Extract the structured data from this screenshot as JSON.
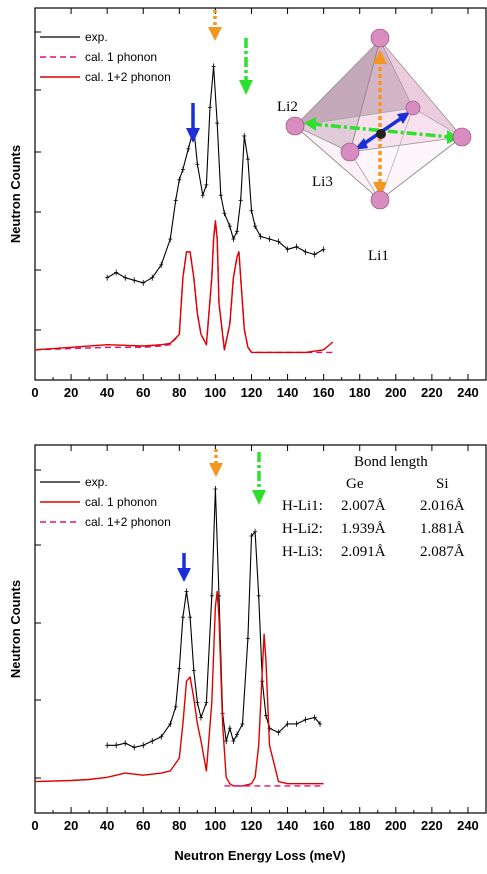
{
  "chart_data": [
    {
      "type": "line",
      "panel": "top",
      "ylabel": "Neutron Counts",
      "xlabel": "",
      "xlim": [
        0,
        250
      ],
      "x_ticks": [
        "0",
        "20",
        "40",
        "60",
        "80",
        "100",
        "120",
        "140",
        "160",
        "180",
        "200",
        "220",
        "240"
      ],
      "y_ticks_labeled": false,
      "legend": [
        "exp.",
        "cal. 1 phonon",
        "cal. 1+2 phonon"
      ],
      "legend_position": "top-left",
      "series": [
        {
          "name": "exp.",
          "color": "#000000",
          "style": "solid-with-errorbars",
          "x": [
            40,
            45,
            50,
            55,
            60,
            65,
            70,
            75,
            78,
            80,
            82,
            85,
            88,
            90,
            93,
            95,
            97,
            99,
            101,
            103,
            105,
            108,
            110,
            112,
            114,
            116,
            118,
            120,
            122,
            125,
            130,
            135,
            140,
            145,
            150,
            155,
            160
          ],
          "y": [
            30,
            32,
            30,
            29,
            28,
            30,
            35,
            45,
            60,
            68,
            72,
            80,
            88,
            74,
            62,
            66,
            96,
            112,
            90,
            62,
            55,
            50,
            45,
            48,
            60,
            85,
            76,
            56,
            50,
            46,
            45,
            44,
            41,
            42,
            40,
            39,
            41
          ]
        },
        {
          "name": "cal. 1 phonon",
          "color": "#e0107a",
          "style": "dashed",
          "x": [
            0,
            20,
            40,
            60,
            70,
            75,
            80,
            82,
            84,
            86,
            88,
            90,
            92,
            95,
            98,
            99,
            100,
            101,
            102,
            105,
            108,
            110,
            112,
            113,
            114,
            116,
            118,
            120,
            125,
            130,
            140,
            150,
            160,
            165
          ],
          "y": [
            2,
            2.5,
            3,
            3,
            3.5,
            4,
            8,
            30,
            40,
            40,
            30,
            16,
            8,
            4,
            30,
            45,
            52,
            45,
            20,
            2,
            12,
            30,
            38,
            40,
            30,
            10,
            3,
            1,
            1,
            1,
            1,
            1,
            1,
            1
          ]
        },
        {
          "name": "cal. 1+2 phonon",
          "color": "#e00000",
          "style": "solid",
          "x": [
            0,
            20,
            40,
            60,
            70,
            75,
            80,
            82,
            84,
            86,
            88,
            90,
            92,
            95,
            98,
            99,
            100,
            101,
            102,
            105,
            108,
            110,
            112,
            113,
            114,
            116,
            118,
            120,
            125,
            130,
            140,
            150,
            160,
            165
          ],
          "y": [
            2,
            3,
            4,
            3.5,
            4,
            4.5,
            8,
            30,
            40,
            40,
            30,
            16,
            8,
            4,
            30,
            45,
            52,
            45,
            20,
            2,
            12,
            30,
            38,
            40,
            30,
            10,
            3,
            1,
            1,
            1,
            1,
            1,
            2,
            5
          ]
        }
      ],
      "annotations": {
        "arrows": [
          "blue down arrow at ~87",
          "orange dotted arrow at ~99",
          "green dash-dot arrow at ~117"
        ],
        "octahedron_labels": [
          "Li2",
          "Li3",
          "Li1"
        ]
      }
    },
    {
      "type": "line",
      "panel": "bottom",
      "ylabel": "Neutron Counts",
      "xlabel": "Neutron Energy Loss (meV)",
      "xlim": [
        0,
        250
      ],
      "x_ticks": [
        "0",
        "20",
        "40",
        "60",
        "80",
        "100",
        "120",
        "140",
        "160",
        "180",
        "200",
        "220",
        "240"
      ],
      "y_ticks_labeled": false,
      "legend": [
        "exp.",
        "cal. 1 phonon",
        "cal. 1+2 phonon"
      ],
      "legend_position": "top-left",
      "series": [
        {
          "name": "exp.",
          "color": "#000000",
          "style": "solid-with-errorbars",
          "x": [
            40,
            45,
            50,
            55,
            60,
            65,
            70,
            75,
            78,
            80,
            82,
            84,
            86,
            88,
            90,
            92,
            95,
            98,
            100,
            102,
            104,
            106,
            108,
            110,
            112,
            115,
            118,
            120,
            122,
            124,
            126,
            128,
            130,
            135,
            140,
            145,
            150,
            155,
            158
          ],
          "y": [
            20,
            20,
            21,
            19,
            20,
            22,
            24,
            30,
            38,
            56,
            80,
            92,
            80,
            55,
            40,
            33,
            40,
            90,
            140,
            90,
            35,
            22,
            28,
            22,
            25,
            30,
            70,
            118,
            120,
            90,
            50,
            34,
            28,
            26,
            30,
            30,
            32,
            33,
            30
          ]
        },
        {
          "name": "cal. 1 phonon",
          "color": "#e00000",
          "style": "solid",
          "x": [
            0,
            20,
            30,
            40,
            45,
            50,
            60,
            70,
            75,
            80,
            82,
            84,
            86,
            88,
            90,
            92,
            95,
            98,
            100,
            101,
            102,
            104,
            106,
            108,
            110,
            115,
            120,
            122,
            124,
            126,
            127,
            128,
            130,
            135,
            140,
            150,
            160
          ],
          "y": [
            3,
            3.5,
            4,
            5,
            6,
            7,
            6,
            7,
            8,
            14,
            30,
            50,
            52,
            42,
            30,
            22,
            8,
            40,
            85,
            92,
            80,
            30,
            5,
            2,
            1,
            1,
            2,
            5,
            20,
            55,
            72,
            60,
            20,
            3,
            2,
            2,
            2
          ]
        },
        {
          "name": "cal. 1+2 phonon",
          "color": "#e0107a",
          "style": "dashed",
          "x": [
            105,
            110,
            120,
            130,
            140,
            150,
            160
          ],
          "y": [
            1,
            1,
            1,
            1,
            1,
            1,
            1
          ]
        }
      ],
      "annotations": {
        "arrows": [
          "blue down arrow at ~84",
          "orange dotted arrow at ~100",
          "green dash-dot arrow at ~124"
        ]
      }
    }
  ],
  "table": {
    "title": "Bond length",
    "columns": [
      "Ge",
      "Si"
    ],
    "rows": [
      {
        "label": "H-Li1:",
        "ge": "2.007Å",
        "si": "2.016Å"
      },
      {
        "label": "H-Li2:",
        "ge": "1.939Å",
        "si": "1.881Å"
      },
      {
        "label": "H-Li3:",
        "ge": "2.091Å",
        "si": "2.087Å"
      }
    ]
  },
  "colors": {
    "exp": "#000000",
    "cal_red": "#e00000",
    "cal_pink": "#e0107a",
    "arrow_blue": "#1a2fd6",
    "arrow_orange": "#f5961e",
    "arrow_green": "#2ee02e",
    "atom": "#d98cc0"
  }
}
